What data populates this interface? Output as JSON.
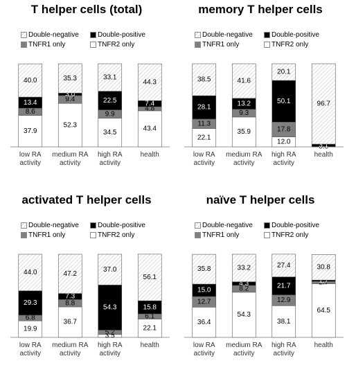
{
  "chart_data": [
    {
      "type": "bar",
      "stacked": true,
      "title": "T helper cells (total)",
      "categories": [
        "low RA activity",
        "medium RA activity",
        "high RA activity",
        "health"
      ],
      "ylim": [
        0,
        100
      ],
      "series": [
        {
          "name": "Double-negative",
          "color": "#ffffff",
          "pattern": "hatch",
          "values": [
            40.0,
            35.3,
            33.1,
            44.3
          ],
          "value_labels": [
            "40.0",
            "35.3",
            "33.1",
            "44.3"
          ]
        },
        {
          "name": "Double-positive",
          "color": "#000000",
          "values": [
            13.4,
            3.0,
            22.5,
            7.4
          ],
          "value_labels": [
            "13.4",
            "3.0",
            "22.5",
            "7.4"
          ]
        },
        {
          "name": "TNFR1 only",
          "color": "#808080",
          "values": [
            8.6,
            9.4,
            9.9,
            4.8
          ],
          "value_labels": [
            "8.6",
            "9.4",
            "9.9",
            "4.8"
          ]
        },
        {
          "name": "TNFR2 only",
          "color": "#ffffff",
          "values": [
            37.9,
            52.3,
            34.5,
            43.4
          ],
          "value_labels": [
            "37.9",
            "52.3",
            "34.5",
            "43.4"
          ]
        }
      ]
    },
    {
      "type": "bar",
      "stacked": true,
      "title": "memory T helper cells",
      "categories": [
        "low RA activity",
        "medium RA activity",
        "high RA activity",
        "health"
      ],
      "ylim": [
        0,
        100
      ],
      "series": [
        {
          "name": "Double-negative",
          "color": "#ffffff",
          "pattern": "hatch",
          "values": [
            38.5,
            41.6,
            20.1,
            96.7
          ],
          "value_labels": [
            "38.5",
            "41.6",
            "20.1",
            "96.7"
          ]
        },
        {
          "name": "Double-positive",
          "color": "#000000",
          "values": [
            28.1,
            13.2,
            50.1,
            3.1
          ],
          "value_labels": [
            "28.1",
            "13.2",
            "50.1",
            "3.1"
          ]
        },
        {
          "name": "TNFR1 only",
          "color": "#808080",
          "values": [
            11.3,
            9.3,
            17.8,
            0.2
          ],
          "value_labels": [
            "11.3",
            "9.3",
            "17.8",
            null
          ]
        },
        {
          "name": "TNFR2 only",
          "color": "#ffffff",
          "values": [
            22.1,
            35.9,
            12.0,
            0.0
          ],
          "value_labels": [
            "22.1",
            "35.9",
            "12.0",
            "0.0"
          ]
        }
      ]
    },
    {
      "type": "bar",
      "stacked": true,
      "title": "activated T helper cells",
      "categories": [
        "low RA activity",
        "medium RA activity",
        "high RA activity",
        "health"
      ],
      "ylim": [
        0,
        100
      ],
      "series": [
        {
          "name": "Double-negative",
          "color": "#ffffff",
          "pattern": "hatch",
          "values": [
            44.0,
            47.2,
            37.0,
            56.1
          ],
          "value_labels": [
            "44.0",
            "47.2",
            "37.0",
            "56.1"
          ]
        },
        {
          "name": "Double-positive",
          "color": "#000000",
          "values": [
            29.3,
            7.3,
            54.3,
            15.8
          ],
          "value_labels": [
            "29.3",
            "7.3",
            "54.3",
            "15.8"
          ]
        },
        {
          "name": "TNFR1 only",
          "color": "#808080",
          "values": [
            6.8,
            8.8,
            5.2,
            6.1
          ],
          "value_labels": [
            "6.8",
            "8.8",
            "5.2",
            "6.1"
          ]
        },
        {
          "name": "TNFR2 only",
          "color": "#ffffff",
          "values": [
            19.9,
            36.7,
            3.5,
            22.1
          ],
          "value_labels": [
            "19.9",
            "36.7",
            "3.5",
            "22.1"
          ]
        }
      ]
    },
    {
      "type": "bar",
      "stacked": true,
      "title": "naïve T helper cells",
      "categories": [
        "low RA activity",
        "medium RA activity",
        "high RA activity",
        "health"
      ],
      "ylim": [
        0,
        100
      ],
      "series": [
        {
          "name": "Double-negative",
          "color": "#ffffff",
          "pattern": "hatch",
          "values": [
            35.8,
            33.2,
            27.4,
            30.8
          ],
          "value_labels": [
            "35.8",
            "33.2",
            "27.4",
            "30.8"
          ]
        },
        {
          "name": "Double-positive",
          "color": "#000000",
          "values": [
            15.0,
            4.3,
            21.7,
            1.7
          ],
          "value_labels": [
            "15.0",
            "4.3",
            "21.7",
            "1.7"
          ]
        },
        {
          "name": "TNFR1 only",
          "color": "#808080",
          "values": [
            12.7,
            8.2,
            12.9,
            2.7
          ],
          "value_labels": [
            "12.7",
            "8.2",
            "12.9",
            "2.7"
          ]
        },
        {
          "name": "TNFR2 only",
          "color": "#ffffff",
          "values": [
            36.4,
            54.3,
            38.1,
            64.5
          ],
          "value_labels": [
            "36.4",
            "54.3",
            "38.1",
            "64.5"
          ]
        }
      ]
    }
  ]
}
